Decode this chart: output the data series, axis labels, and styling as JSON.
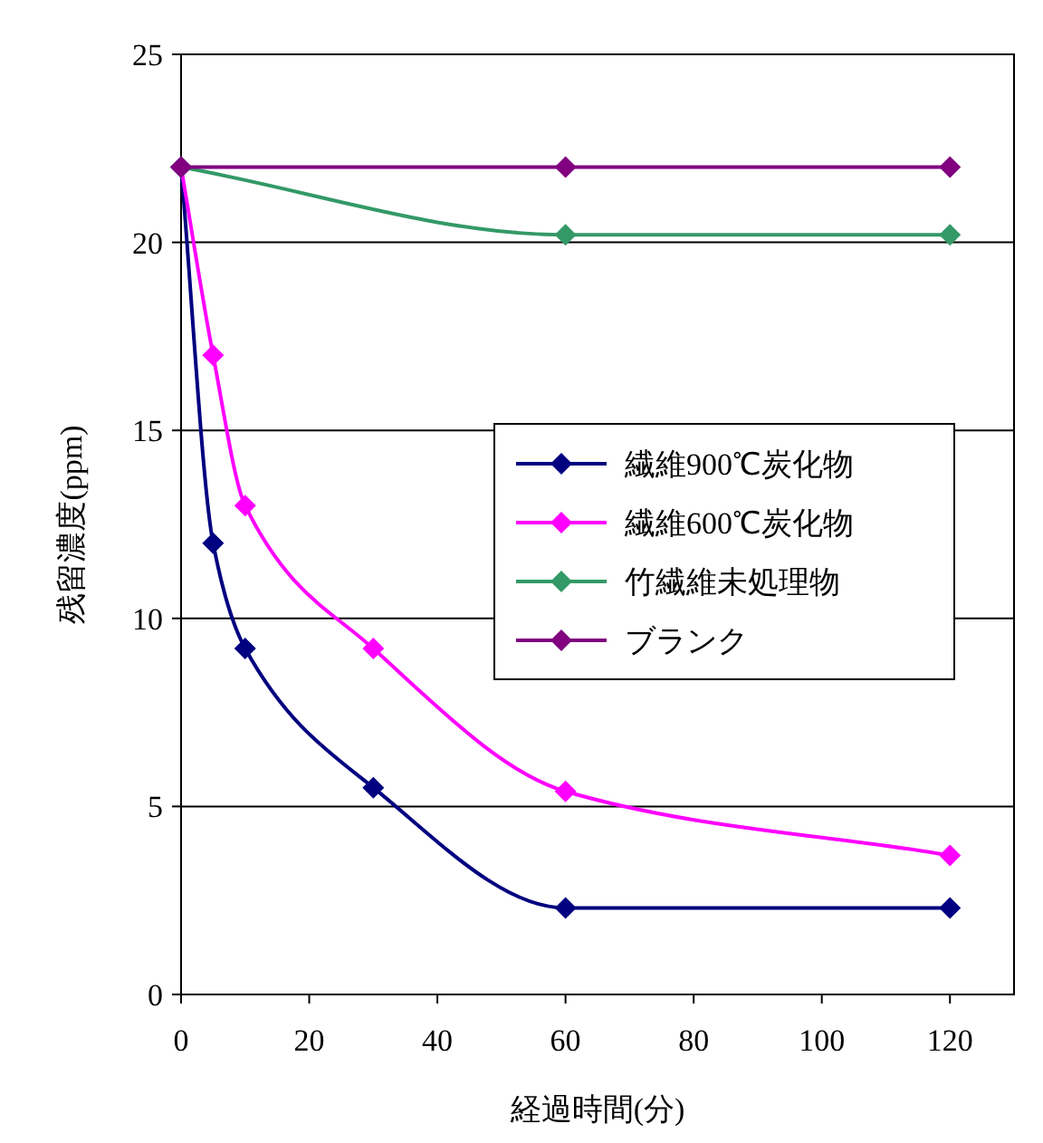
{
  "chart_data": {
    "type": "line",
    "xlabel": "経過時間(分)",
    "ylabel": "残留濃度(ppm)",
    "xlim": [
      0,
      130
    ],
    "ylim": [
      0,
      25
    ],
    "xticks": [
      0,
      20,
      40,
      60,
      80,
      100,
      120
    ],
    "yticks": [
      0,
      5,
      10,
      15,
      20,
      25
    ],
    "grid": "y",
    "legend": "right",
    "marker": "diamond",
    "series": [
      {
        "name": "繊維900℃炭化物",
        "color": "#000080",
        "x": [
          0,
          5,
          10,
          30,
          60,
          120
        ],
        "values": [
          22,
          12,
          9.2,
          5.5,
          2.3,
          2.3
        ]
      },
      {
        "name": "繊維600℃炭化物",
        "color": "#ff00ff",
        "x": [
          0,
          5,
          10,
          30,
          60,
          120
        ],
        "values": [
          22,
          17,
          13,
          9.2,
          5.4,
          3.7
        ]
      },
      {
        "name": "竹繊維未処理物",
        "color": "#339966",
        "x": [
          0,
          60,
          120
        ],
        "values": [
          22,
          20.2,
          20.2
        ]
      },
      {
        "name": "ブランク",
        "color": "#800080",
        "x": [
          0,
          60,
          120
        ],
        "values": [
          22,
          22,
          22
        ]
      }
    ]
  }
}
